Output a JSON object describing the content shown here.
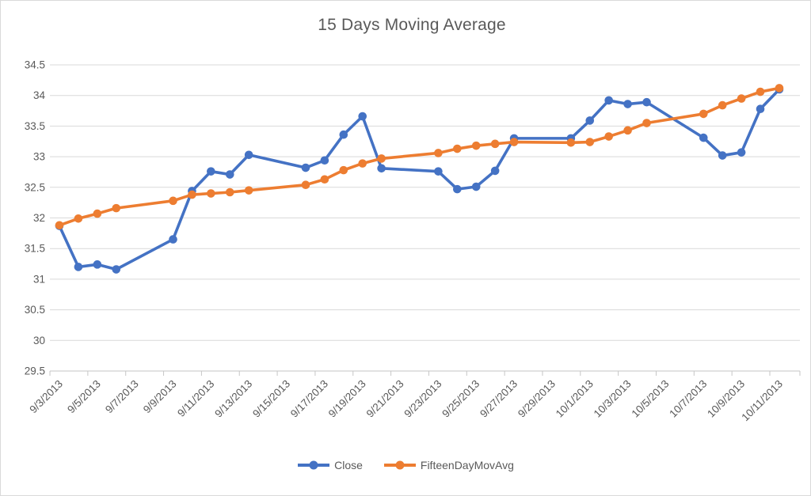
{
  "chart_data": {
    "type": "line",
    "title": "15 Days Moving Average",
    "x": [
      "9/3/2013",
      "9/4/2013",
      "9/5/2013",
      "9/6/2013",
      "9/9/2013",
      "9/10/2013",
      "9/11/2013",
      "9/12/2013",
      "9/13/2013",
      "9/16/2013",
      "9/17/2013",
      "9/18/2013",
      "9/19/2013",
      "9/20/2013",
      "9/23/2013",
      "9/24/2013",
      "9/25/2013",
      "9/26/2013",
      "9/27/2013",
      "9/30/2013",
      "10/1/2013",
      "10/2/2013",
      "10/3/2013",
      "10/4/2013",
      "10/7/2013",
      "10/8/2013",
      "10/9/2013",
      "10/10/2013",
      "10/11/2013"
    ],
    "x_note": "date axis, weekends skipped (no data Sat/Sun)",
    "series": [
      {
        "name": "Close",
        "color": "#4472C4",
        "values": [
          31.87,
          31.2,
          31.24,
          31.16,
          31.65,
          32.44,
          32.76,
          32.71,
          33.03,
          32.82,
          32.94,
          33.36,
          33.66,
          32.81,
          32.76,
          32.47,
          32.51,
          32.77,
          33.3,
          33.3,
          33.59,
          33.92,
          33.86,
          33.89,
          33.31,
          33.02,
          33.07,
          33.78,
          34.1
        ]
      },
      {
        "name": "FifteenDayMovAvg",
        "color": "#ED7D31",
        "values": [
          31.88,
          31.99,
          32.07,
          32.16,
          32.28,
          32.38,
          32.4,
          32.42,
          32.45,
          32.54,
          32.63,
          32.78,
          32.89,
          32.97,
          33.06,
          33.13,
          33.18,
          33.21,
          33.24,
          33.23,
          33.24,
          33.33,
          33.43,
          33.55,
          33.7,
          33.84,
          33.95,
          34.06,
          34.12
        ]
      }
    ],
    "x_tick_labels": [
      "9/3/2013",
      "9/5/2013",
      "9/7/2013",
      "9/9/2013",
      "9/11/2013",
      "9/13/2013",
      "9/15/2013",
      "9/17/2013",
      "9/19/2013",
      "9/21/2013",
      "9/23/2013",
      "9/25/2013",
      "9/27/2013",
      "9/29/2013",
      "10/1/2013",
      "10/3/2013",
      "10/5/2013",
      "10/7/2013",
      "10/9/2013",
      "10/11/2013"
    ],
    "y_ticks": [
      29.5,
      30,
      30.5,
      31,
      31.5,
      32,
      32.5,
      33,
      33.5,
      34,
      34.5
    ],
    "y_tick_labels": [
      "29.5",
      "30",
      "30.5",
      "31",
      "31.5",
      "32",
      "32.5",
      "33",
      "33.5",
      "34",
      "34.5"
    ],
    "ylim": [
      29.5,
      34.5
    ],
    "grid": true,
    "legend_position": "bottom",
    "colors": {
      "grid_line": "#d9d9d9",
      "axis_line": "#c6c6c6",
      "tick_label": "#595959",
      "title": "#595959"
    }
  }
}
